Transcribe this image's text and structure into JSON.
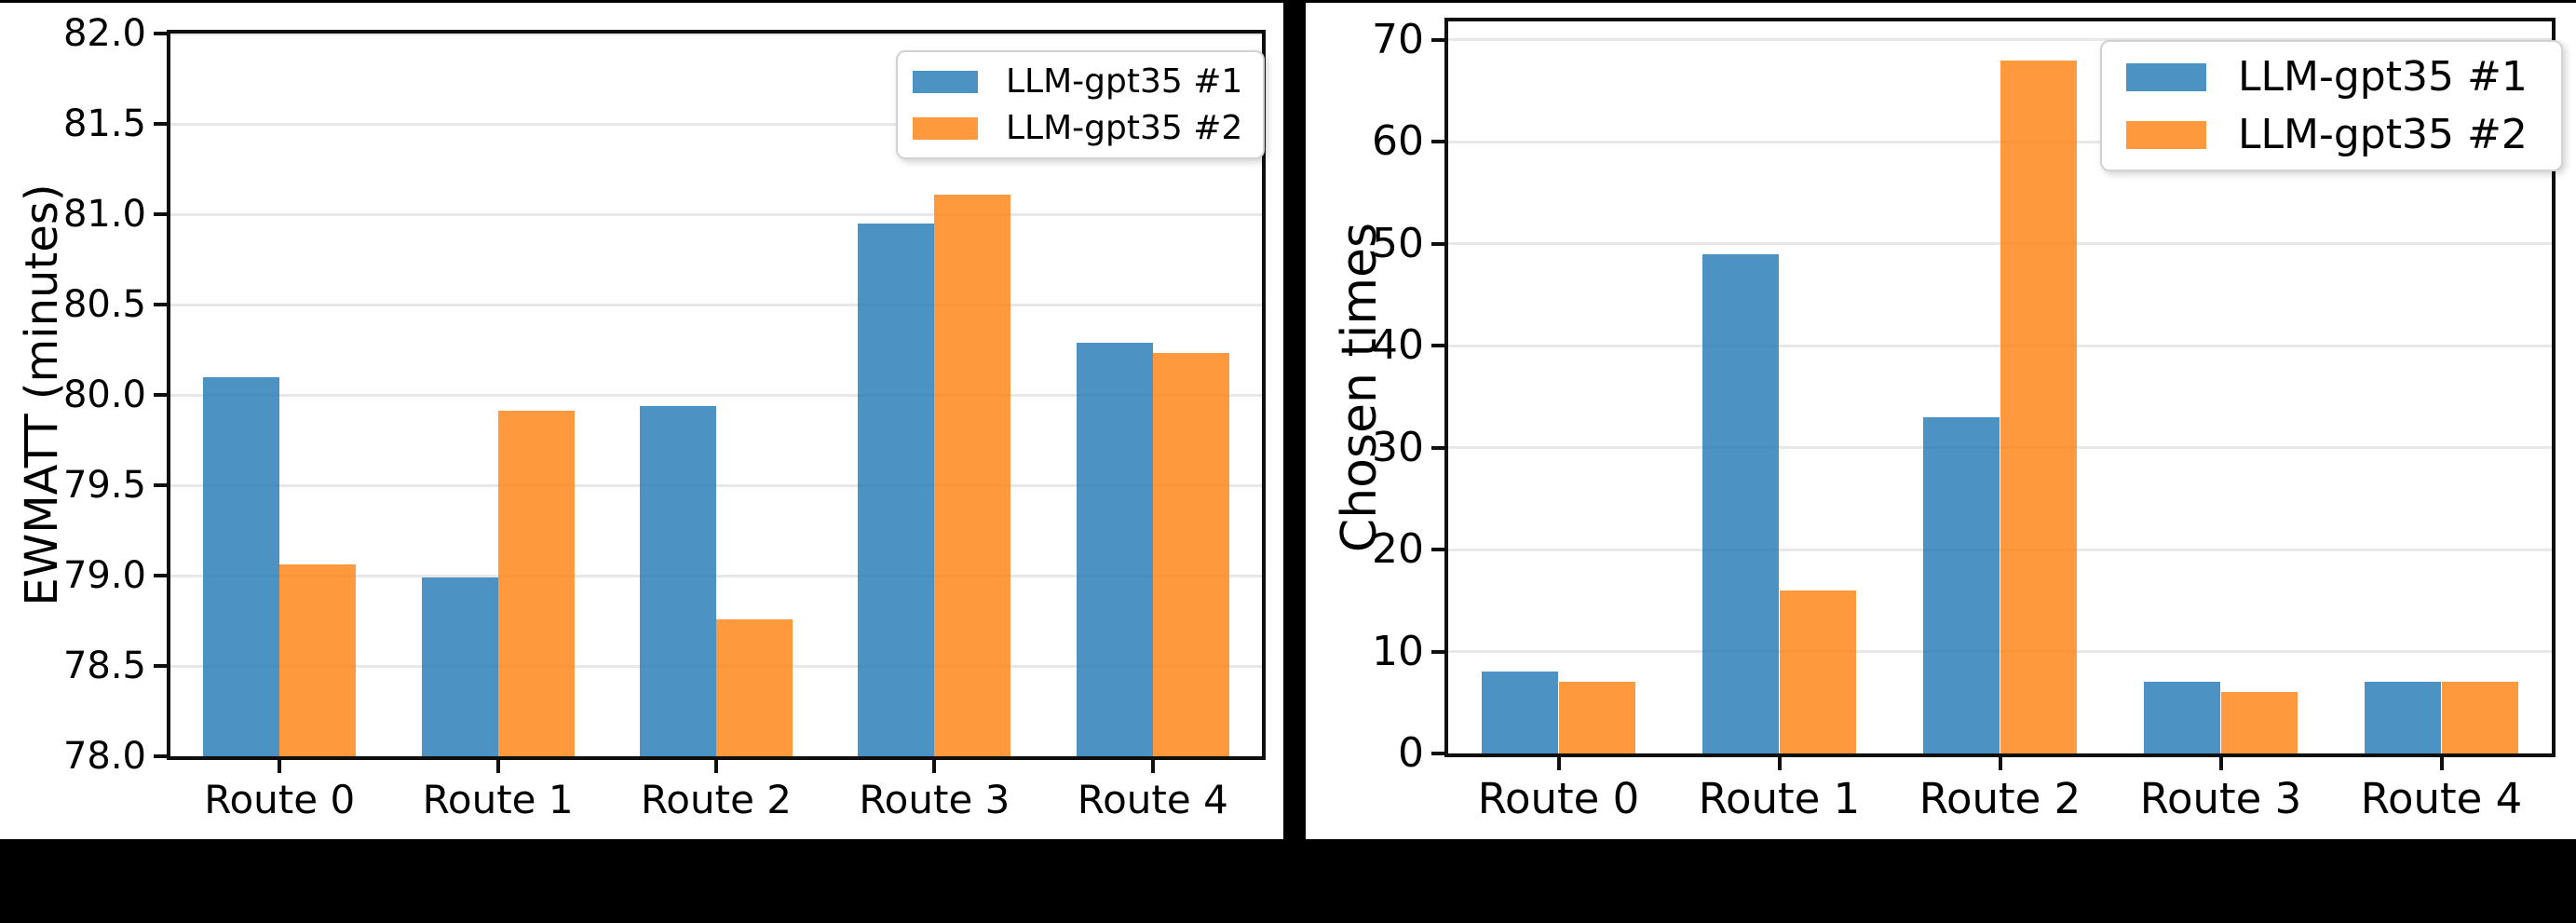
{
  "figure": {
    "background": "#000000",
    "panel_background": "#ffffff",
    "grid_color": "#e8e8e8",
    "spine_color": "#0f0f0f",
    "legend_border_color": "#d2d2d2"
  },
  "chart_data": [
    {
      "type": "bar",
      "title": "",
      "xlabel": "",
      "ylabel": "EWMATT (minutes)",
      "categories": [
        "Route 0",
        "Route 1",
        "Route 2",
        "Route 3",
        "Route 4"
      ],
      "series": [
        {
          "name": "LLM-gpt35 #1",
          "color": "#1f77b4",
          "alpha": 0.8,
          "values": [
            80.1,
            78.99,
            79.94,
            80.95,
            80.29
          ]
        },
        {
          "name": "LLM-gpt35 #2",
          "color": "#ff7f0e",
          "alpha": 0.8,
          "values": [
            79.06,
            79.91,
            78.76,
            81.11,
            80.23
          ]
        }
      ],
      "ylim": [
        78.0,
        82.0
      ],
      "yticks": [
        78.0,
        78.5,
        79.0,
        79.5,
        80.0,
        80.5,
        81.0,
        81.5,
        82.0
      ],
      "ytick_labels": [
        "78.0",
        "78.5",
        "79.0",
        "79.5",
        "80.0",
        "80.5",
        "81.0",
        "81.5",
        "82.0"
      ],
      "grid": "horizontal",
      "legend_position": "upper right",
      "bar_width_frac": 0.35
    },
    {
      "type": "bar",
      "title": "",
      "xlabel": "",
      "ylabel": "Chosen times",
      "categories": [
        "Route 0",
        "Route 1",
        "Route 2",
        "Route 3",
        "Route 4"
      ],
      "series": [
        {
          "name": "LLM-gpt35 #1",
          "color": "#1f77b4",
          "alpha": 0.8,
          "values": [
            8,
            49,
            33,
            7,
            7
          ]
        },
        {
          "name": "LLM-gpt35 #2",
          "color": "#ff7f0e",
          "alpha": 0.8,
          "values": [
            7,
            16,
            68,
            6,
            7
          ]
        }
      ],
      "ylim": [
        0,
        71.8
      ],
      "yticks": [
        0,
        10,
        20,
        30,
        40,
        50,
        60,
        70
      ],
      "ytick_labels": [
        "0",
        "10",
        "20",
        "30",
        "40",
        "50",
        "60",
        "70"
      ],
      "grid": "horizontal",
      "legend_position": "upper right",
      "bar_width_frac": 0.35
    }
  ]
}
